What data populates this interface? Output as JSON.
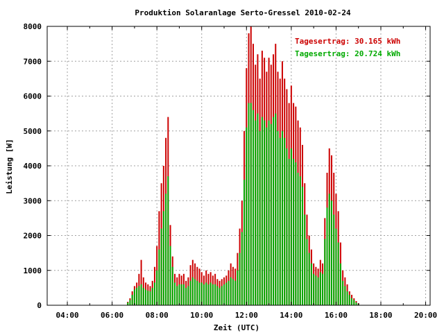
{
  "chart_data": {
    "type": "bar",
    "title": "Produktion Solaranlage Serto-Gressel 2010-02-24",
    "xlabel": "Zeit (UTC)",
    "ylabel": "Leistung [W]",
    "xlim_hours": [
      3.1,
      20.2
    ],
    "ylim": [
      0,
      8000
    ],
    "x_ticks": [
      {
        "value": 4,
        "label": "04:00"
      },
      {
        "value": 6,
        "label": "06:00"
      },
      {
        "value": 8,
        "label": "08:00"
      },
      {
        "value": 10,
        "label": "10:00"
      },
      {
        "value": 12,
        "label": "12:00"
      },
      {
        "value": 14,
        "label": "14:00"
      },
      {
        "value": 16,
        "label": "16:00"
      },
      {
        "value": 18,
        "label": "18:00"
      },
      {
        "value": 20,
        "label": "20:00"
      }
    ],
    "y_ticks": [
      {
        "value": 0,
        "label": "0"
      },
      {
        "value": 1000,
        "label": "1000"
      },
      {
        "value": 2000,
        "label": "2000"
      },
      {
        "value": 3000,
        "label": "3000"
      },
      {
        "value": 4000,
        "label": "4000"
      },
      {
        "value": 5000,
        "label": "5000"
      },
      {
        "value": 6000,
        "label": "6000"
      },
      {
        "value": 7000,
        "label": "7000"
      },
      {
        "value": 8000,
        "label": "8000"
      }
    ],
    "grid": true,
    "legend_position": "top-right",
    "series": [
      {
        "label": "Tagesertrag: 30.165 kWh",
        "color": "#cc0000",
        "x": [
          6.7,
          6.8,
          6.9,
          7.0,
          7.1,
          7.2,
          7.3,
          7.4,
          7.5,
          7.6,
          7.7,
          7.8,
          7.9,
          8.0,
          8.1,
          8.2,
          8.3,
          8.4,
          8.5,
          8.6,
          8.7,
          8.8,
          8.9,
          9.0,
          9.1,
          9.2,
          9.3,
          9.4,
          9.5,
          9.6,
          9.7,
          9.8,
          9.9,
          10.0,
          10.1,
          10.2,
          10.3,
          10.4,
          10.5,
          10.6,
          10.7,
          10.8,
          10.9,
          11.0,
          11.1,
          11.2,
          11.3,
          11.4,
          11.5,
          11.6,
          11.7,
          11.8,
          11.9,
          12.0,
          12.1,
          12.2,
          12.3,
          12.4,
          12.5,
          12.6,
          12.7,
          12.8,
          12.9,
          13.0,
          13.1,
          13.2,
          13.3,
          13.4,
          13.5,
          13.6,
          13.7,
          13.8,
          13.9,
          14.0,
          14.1,
          14.2,
          14.3,
          14.4,
          14.5,
          14.6,
          14.7,
          14.8,
          14.9,
          15.0,
          15.1,
          15.2,
          15.3,
          15.4,
          15.5,
          15.6,
          15.7,
          15.8,
          15.9,
          16.0,
          16.1,
          16.2,
          16.3,
          16.4,
          16.5,
          16.6,
          16.7,
          16.8,
          16.9,
          17.0
        ],
        "values": [
          100,
          200,
          400,
          550,
          650,
          900,
          1300,
          800,
          650,
          600,
          550,
          700,
          1100,
          1700,
          2700,
          3500,
          4000,
          4800,
          5400,
          2300,
          1400,
          900,
          800,
          900,
          850,
          900,
          700,
          800,
          1150,
          1300,
          1200,
          1100,
          1050,
          950,
          850,
          1000,
          900,
          950,
          850,
          900,
          750,
          700,
          750,
          800,
          850,
          1000,
          1200,
          1100,
          1050,
          1500,
          2200,
          3000,
          5000,
          6800,
          7800,
          8000,
          7500,
          6900,
          7200,
          6500,
          7300,
          7100,
          6700,
          7100,
          6900,
          7200,
          7500,
          6700,
          6500,
          7000,
          6500,
          6200,
          5800,
          6300,
          5800,
          5700,
          5300,
          5100,
          4600,
          3500,
          2600,
          2000,
          1600,
          1200,
          1100,
          1050,
          1300,
          1200,
          2500,
          3800,
          4500,
          4300,
          3800,
          3200,
          2700,
          1800,
          1000,
          800,
          600,
          400,
          300,
          200,
          120,
          60
        ]
      },
      {
        "label": "Tagesertrag: 20.724 kWh",
        "color": "#00aa00",
        "x": [
          6.7,
          6.8,
          6.9,
          7.0,
          7.1,
          7.2,
          7.3,
          7.4,
          7.5,
          7.6,
          7.7,
          7.8,
          7.9,
          8.0,
          8.1,
          8.2,
          8.3,
          8.4,
          8.5,
          8.6,
          8.7,
          8.8,
          8.9,
          9.0,
          9.1,
          9.2,
          9.3,
          9.4,
          9.5,
          9.6,
          9.7,
          9.8,
          9.9,
          10.0,
          10.1,
          10.2,
          10.3,
          10.4,
          10.5,
          10.6,
          10.7,
          10.8,
          10.9,
          11.0,
          11.1,
          11.2,
          11.3,
          11.4,
          11.5,
          11.6,
          11.7,
          11.8,
          11.9,
          12.0,
          12.1,
          12.2,
          12.3,
          12.4,
          12.5,
          12.6,
          12.7,
          12.8,
          12.9,
          13.0,
          13.1,
          13.2,
          13.3,
          13.4,
          13.5,
          13.6,
          13.7,
          13.8,
          13.9,
          14.0,
          14.1,
          14.2,
          14.3,
          14.4,
          14.5,
          14.6,
          14.7,
          14.8,
          14.9,
          15.0,
          15.1,
          15.2,
          15.3,
          15.4,
          15.5,
          15.6,
          15.7,
          15.8,
          15.9,
          16.0,
          16.1,
          16.2,
          16.3,
          16.4,
          16.5,
          16.6,
          16.7,
          16.8,
          16.9,
          17.0
        ],
        "values": [
          80,
          150,
          300,
          450,
          500,
          550,
          600,
          500,
          450,
          420,
          400,
          500,
          650,
          1000,
          1600,
          2200,
          2700,
          3200,
          3700,
          1700,
          1100,
          650,
          550,
          600,
          600,
          600,
          500,
          550,
          700,
          800,
          750,
          700,
          650,
          650,
          600,
          650,
          600,
          650,
          600,
          600,
          550,
          500,
          550,
          600,
          650,
          700,
          800,
          750,
          700,
          1000,
          1500,
          2100,
          3600,
          5100,
          5800,
          5800,
          5600,
          5300,
          5500,
          5000,
          5400,
          5300,
          5100,
          5300,
          5200,
          5400,
          5500,
          5000,
          4800,
          5000,
          4800,
          4500,
          4200,
          4500,
          4200,
          4100,
          3800,
          3700,
          3400,
          2600,
          1900,
          1500,
          1200,
          900,
          850,
          800,
          950,
          900,
          1900,
          2800,
          3200,
          3000,
          2600,
          2200,
          1800,
          1200,
          700,
          550,
          400,
          300,
          200,
          150,
          80,
          40
        ]
      }
    ]
  }
}
